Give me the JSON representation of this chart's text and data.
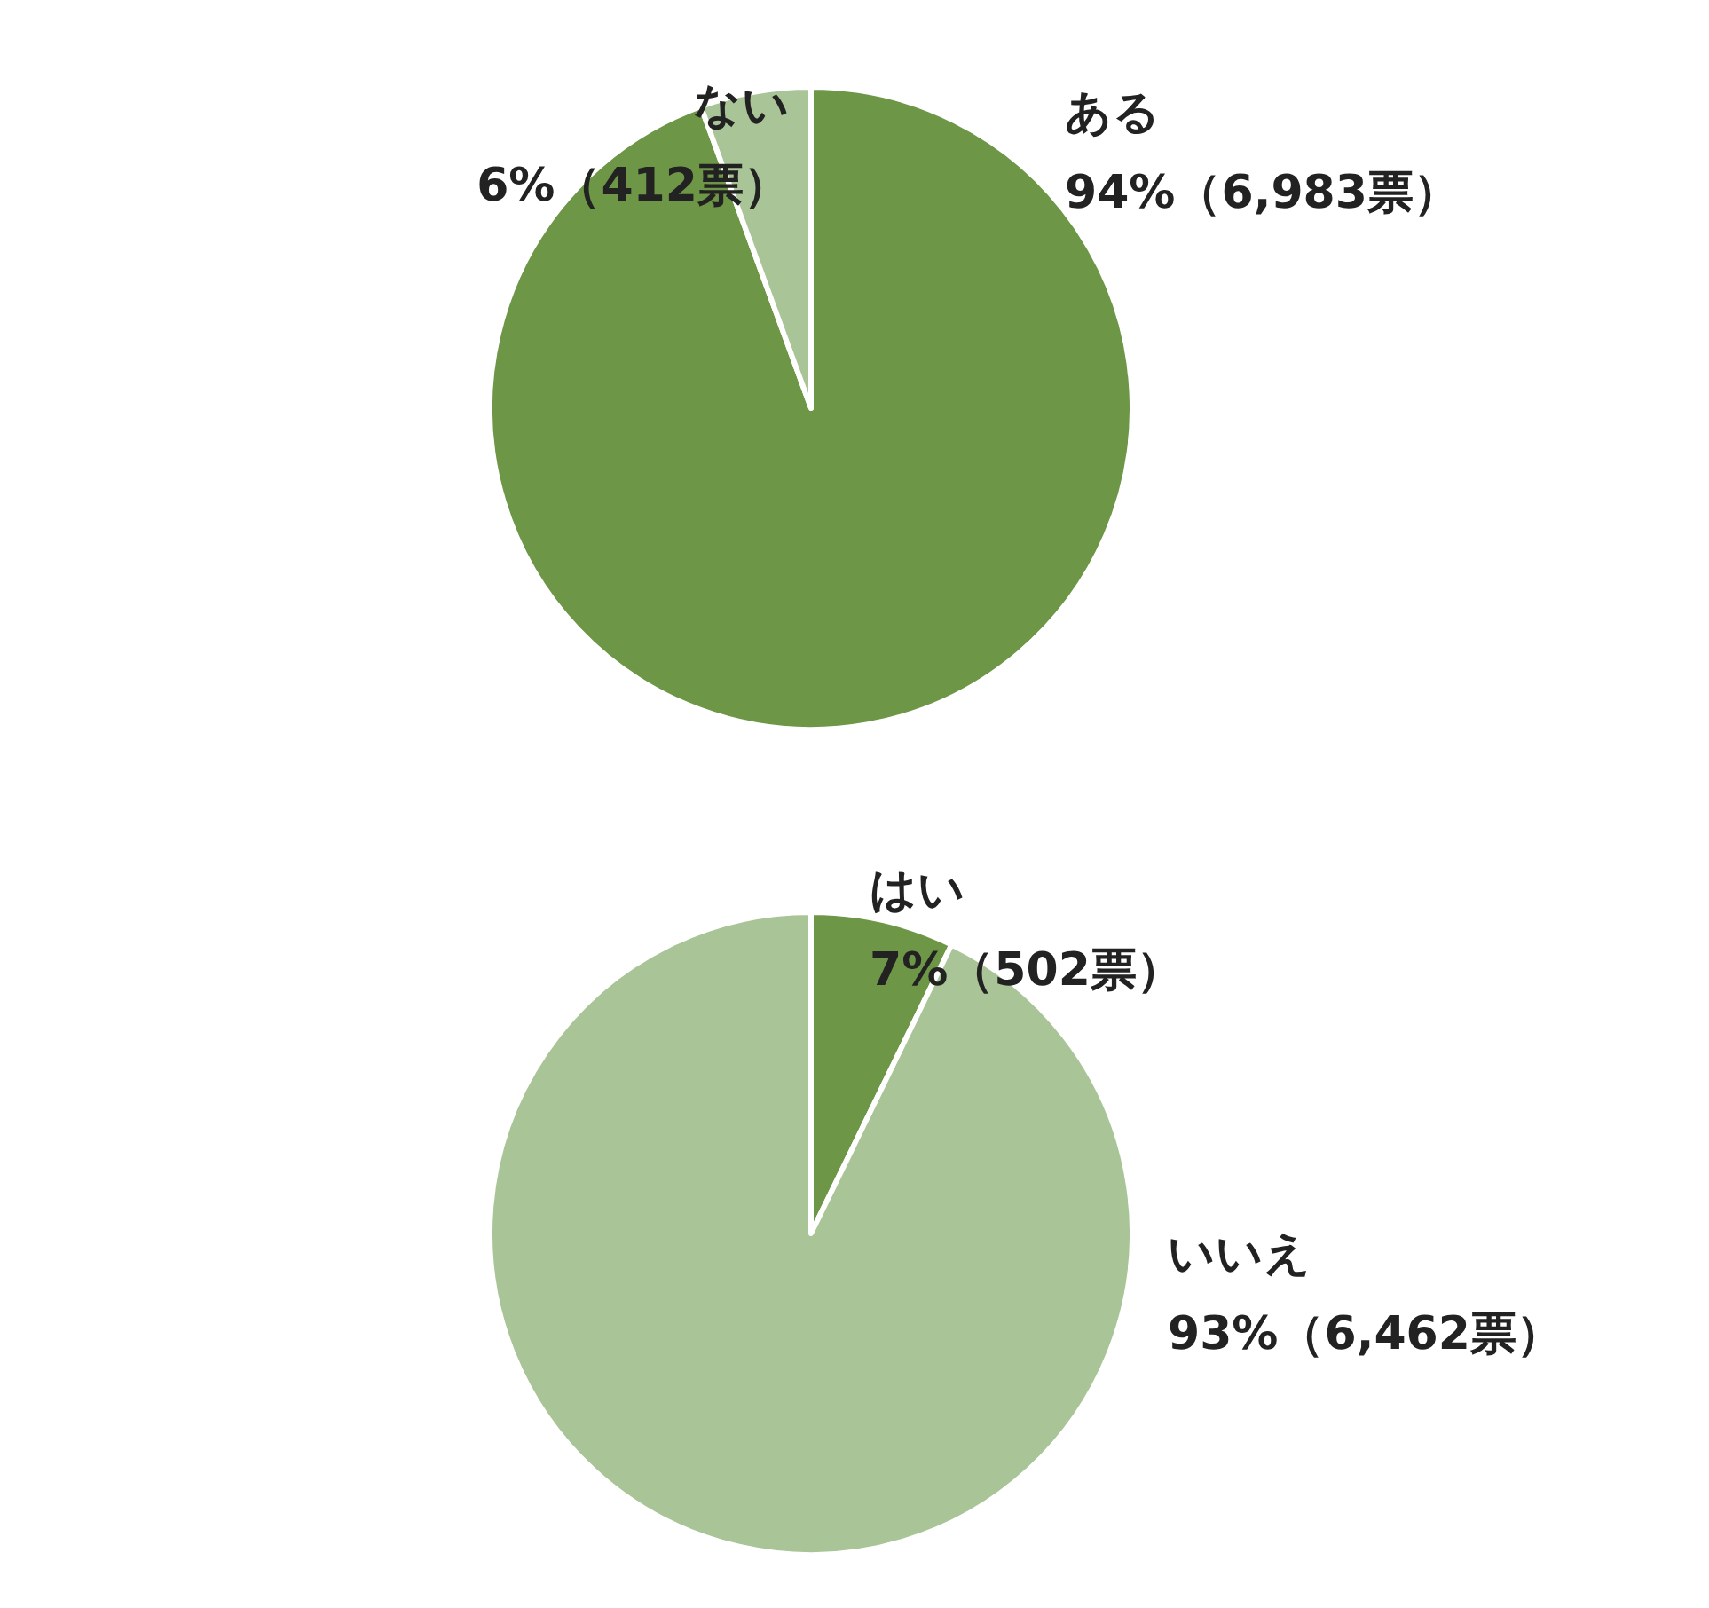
{
  "chart_data": [
    {
      "type": "pie",
      "categories": [
        "ある",
        "ない"
      ],
      "values": [
        6983,
        412
      ],
      "colors": [
        "#6e9647",
        "#a9c497"
      ],
      "value_labels": [
        "94%（6,983票）",
        "6%（412票）"
      ]
    },
    {
      "type": "pie",
      "categories": [
        "はい",
        "いいえ"
      ],
      "values": [
        502,
        6462
      ],
      "colors": [
        "#6e9647",
        "#a9c497"
      ],
      "value_labels": [
        "7%（502票）",
        "93%（6,462票）"
      ]
    }
  ]
}
